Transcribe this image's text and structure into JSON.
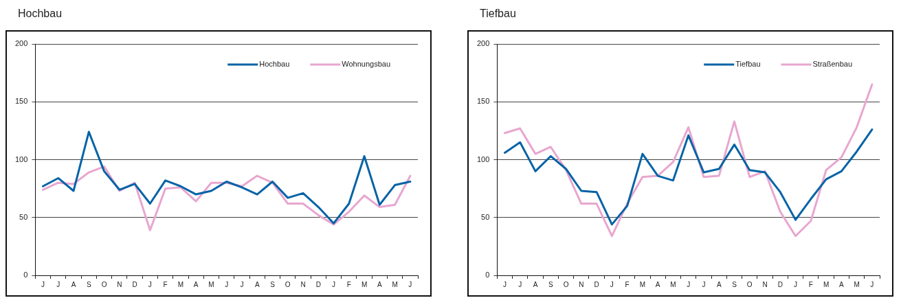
{
  "chart_data": [
    {
      "type": "line",
      "title": "Hochbau",
      "categories": [
        "J",
        "J",
        "A",
        "S",
        "O",
        "N",
        "D",
        "J",
        "F",
        "M",
        "A",
        "M",
        "J",
        "J",
        "A",
        "S",
        "O",
        "N",
        "D",
        "J",
        "F",
        "M",
        "A",
        "M",
        "J"
      ],
      "series": [
        {
          "name": "Hochbau",
          "color": "#0563a6",
          "values": [
            77,
            84,
            73,
            124,
            90,
            74,
            79,
            62,
            82,
            77,
            70,
            73,
            81,
            76,
            70,
            81,
            67,
            71,
            59,
            45,
            62,
            103,
            61,
            78,
            81
          ]
        },
        {
          "name": "Wohnungsbau",
          "color": "#e8a6cf",
          "values": [
            74,
            80,
            79,
            89,
            94,
            73,
            80,
            39,
            75,
            76,
            64,
            80,
            80,
            77,
            86,
            80,
            62,
            62,
            52,
            44,
            55,
            69,
            59,
            61,
            86
          ]
        }
      ],
      "ylim": [
        0,
        200
      ],
      "yticks": [
        0,
        50,
        100,
        150,
        200
      ],
      "grid": "y",
      "legend": "top right",
      "marker": "none",
      "line_style": "solid"
    },
    {
      "type": "line",
      "title": "Tiefbau",
      "categories": [
        "J",
        "J",
        "A",
        "S",
        "O",
        "N",
        "D",
        "J",
        "F",
        "M",
        "A",
        "M",
        "J",
        "J",
        "A",
        "S",
        "O",
        "N",
        "D",
        "J",
        "F",
        "M",
        "A",
        "M",
        "J"
      ],
      "series": [
        {
          "name": "Tiefbau",
          "color": "#0563a6",
          "values": [
            106,
            115,
            90,
            103,
            92,
            73,
            72,
            44,
            60,
            105,
            86,
            82,
            121,
            89,
            92,
            113,
            91,
            89,
            72,
            48,
            66,
            83,
            90,
            107,
            126
          ]
        },
        {
          "name": "Straßenbau",
          "color": "#e8a6cf",
          "values": [
            123,
            127,
            105,
            111,
            91,
            62,
            62,
            34,
            62,
            85,
            86,
            98,
            128,
            85,
            86,
            133,
            85,
            90,
            55,
            34,
            47,
            91,
            102,
            128,
            165
          ]
        }
      ],
      "ylim": [
        0,
        200
      ],
      "yticks": [
        0,
        50,
        100,
        150,
        200
      ],
      "grid": "y",
      "legend": "top right",
      "marker": "none",
      "line_style": "solid"
    }
  ]
}
